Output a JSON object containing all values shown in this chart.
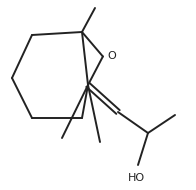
{
  "background": "#ffffff",
  "line_color": "#222222",
  "line_width": 1.4,
  "font_size_O": 8,
  "font_size_HO": 8
}
